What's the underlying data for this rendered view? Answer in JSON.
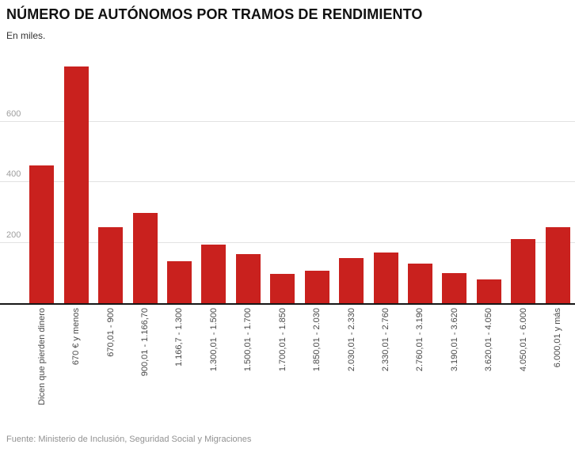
{
  "header": {
    "title": "NÚMERO DE AUTÓNOMOS POR TRAMOS DE RENDIMIENTO",
    "subtitle": "En miles."
  },
  "footer": {
    "source": "Fuente: Ministerio de Inclusión, Seguridad Social y Migraciones"
  },
  "colors": {
    "bar": "#c9211e",
    "gridline": "#e2e2e2",
    "axis_line": "#161616",
    "ytick_label": "#9e9e9e",
    "xtick_label": "#4a4a4a"
  },
  "chart_data": {
    "type": "bar",
    "title": "NÚMERO DE AUTÓNOMOS POR TRAMOS DE RENDIMIENTO",
    "subtitle": "En miles.",
    "categories": [
      "Dicen que pierden dinero",
      "670 € y menos",
      "670,01 - 900",
      "900,01 - 1.166,70",
      "1.166,7 - 1.300",
      "1.300,01 - 1.500",
      "1.500,01 - 1.700",
      "1.700,01 - 1.850",
      "1.850,01 - 2.030",
      "2.030,01 - 2.330",
      "2.330,01 - 2.760",
      "2.760,01 - 3.190",
      "3.190,01 - 3.620",
      "3.620,01 - 4.050",
      "4.050,01 - 6.000",
      "6.000,01 y más"
    ],
    "values": [
      456,
      781,
      250,
      299,
      139,
      193,
      161,
      98,
      107,
      149,
      167,
      130,
      99,
      78,
      211,
      251
    ],
    "xlabel": "",
    "ylabel": "",
    "ylim": [
      0,
      800
    ],
    "yticks": [
      200,
      400,
      600
    ],
    "grid": true,
    "legend": false,
    "bar_orientation": "vertical",
    "x_tick_rotation": -90
  }
}
